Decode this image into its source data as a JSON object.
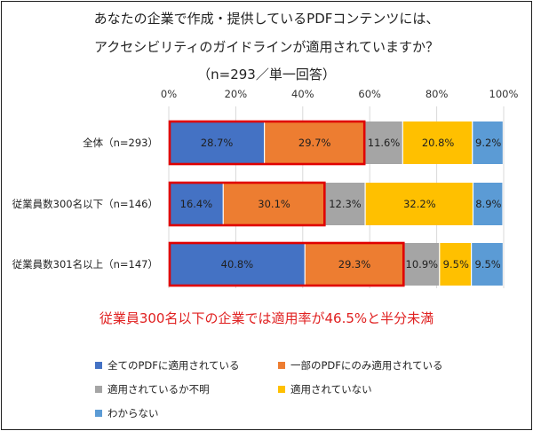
{
  "title_lines": [
    "あなたの企業で作成・提供しているPDFコンテンツには、",
    "アクセシビリティのガイドラインが適用されていますか？",
    "（n=293／単一回答）"
  ],
  "note": "従業員300名以下の企業では適用率が46.5%と半分未満",
  "chart_data": {
    "type": "bar",
    "orientation": "horizontal",
    "stacked": true,
    "percent_stacked": true,
    "categories": [
      "全体（n=293）",
      "従業員数300名以下（n=146）",
      "従業員数301名以上（n=147）"
    ],
    "xlim": [
      0,
      100
    ],
    "x_ticks": [
      "0%",
      "20%",
      "40%",
      "60%",
      "80%",
      "100%"
    ],
    "grid": "vertical",
    "legend_position": "bottom",
    "series": [
      {
        "name": "全てのPDFに適用されている",
        "color": "#4472c4",
        "values": [
          28.7,
          16.4,
          40.8
        ],
        "labels": [
          "28.7%",
          "16.4%",
          "40.8%"
        ],
        "label_color": "#1f1f1f"
      },
      {
        "name": "一部のPDFにのみ適用されている",
        "color": "#ed7d31",
        "values": [
          29.7,
          30.1,
          29.3
        ],
        "labels": [
          "29.7%",
          "30.1%",
          "29.3%"
        ],
        "label_color": "#1f1f1f"
      },
      {
        "name": "適用されているか不明",
        "color": "#a5a5a5",
        "values": [
          11.6,
          12.3,
          10.9
        ],
        "labels": [
          "11.6%",
          "12.3%",
          "10.9%"
        ],
        "label_color": "#1f1f1f"
      },
      {
        "name": "適用されていない",
        "color": "#ffc000",
        "values": [
          20.8,
          32.2,
          9.5
        ],
        "labels": [
          "20.8%",
          "32.2%",
          "9.5%"
        ],
        "label_color": "#1f1f1f"
      },
      {
        "name": "わからない",
        "color": "#5b9bd5",
        "values": [
          9.2,
          8.9,
          9.5
        ],
        "labels": [
          "9.2%",
          "8.9%",
          "9.5%"
        ],
        "label_color": "#1f1f1f"
      }
    ],
    "highlight": {
      "series_indices": [
        0,
        1
      ],
      "outline_color": "#e00000"
    }
  }
}
